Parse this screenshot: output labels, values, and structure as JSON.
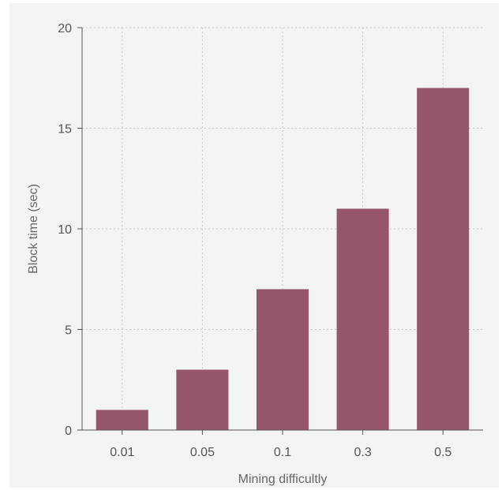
{
  "chart_data": {
    "type": "bar",
    "title": "",
    "categories": [
      "0.01",
      "0.05",
      "0.1",
      "0.3",
      "0.5"
    ],
    "values": [
      1,
      3,
      7,
      11,
      17
    ],
    "xlabel": "Mining difficultly",
    "ylabel": "Block time (sec)",
    "ylim": [
      0,
      20
    ],
    "yticks": [
      0,
      5,
      10,
      15,
      20
    ],
    "grid": true,
    "legend": "none",
    "bar_color": "#955669",
    "background_color": "#f3f4f4"
  }
}
